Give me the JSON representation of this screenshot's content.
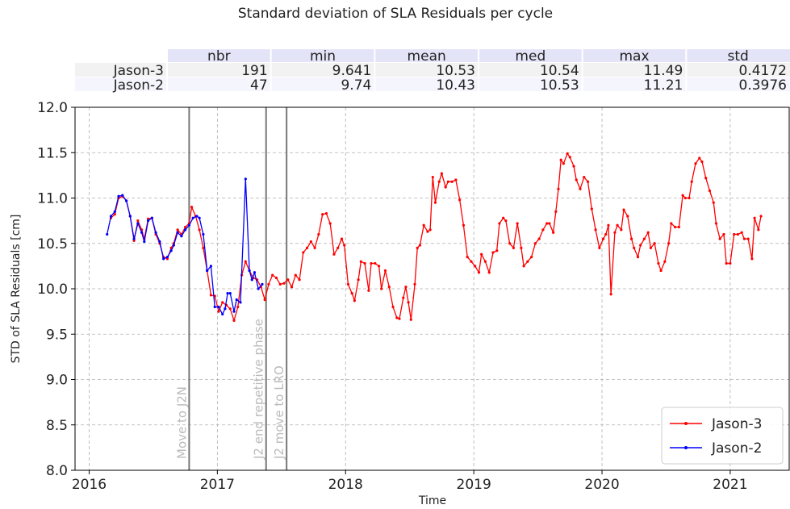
{
  "chart_data": {
    "type": "line",
    "title": "Standard deviation of SLA Residuals per cycle",
    "xlabel": "Time",
    "ylabel": "STD of SLA Residuals [cm]",
    "xlim": [
      2015.89,
      2021.46
    ],
    "xticks": [
      2016,
      2017,
      2018,
      2019,
      2020,
      2021
    ],
    "ylim": [
      8,
      12
    ],
    "yticks": [
      {
        "value": 8,
        "label": "8.0"
      },
      {
        "value": 8.5,
        "label": "8.5"
      },
      {
        "value": 9,
        "label": "9.0"
      },
      {
        "value": 9.5,
        "label": "9.5"
      },
      {
        "value": 10,
        "label": "10.0"
      },
      {
        "value": 10.5,
        "label": "10.5"
      },
      {
        "value": 11,
        "label": "11.0"
      },
      {
        "value": 11.5,
        "label": "11.5"
      },
      {
        "value": 12,
        "label": "12.0"
      }
    ],
    "grid": true,
    "legend": "lower right",
    "annotations": [
      {
        "x": 2016.78,
        "label": "Move to J2N"
      },
      {
        "x": 2017.38,
        "label": "J2 end repetitive phase"
      },
      {
        "x": 2017.54,
        "label": "J2 move to LRO"
      }
    ],
    "table": {
      "columns": [
        "nbr",
        "min",
        "mean",
        "med",
        "max",
        "std"
      ],
      "rows": [
        {
          "name": "Jason-3",
          "values": [
            191,
            9.641,
            10.53,
            10.54,
            11.49,
            0.4172
          ]
        },
        {
          "name": "Jason-2",
          "values": [
            47,
            9.74,
            10.43,
            10.53,
            11.21,
            0.3976
          ]
        }
      ]
    },
    "series": [
      {
        "name": "Jason-3",
        "color": "#ff0000",
        "x": [
          2016.17,
          2016.2,
          2016.23,
          2016.26,
          2016.29,
          2016.32,
          2016.35,
          2016.38,
          2016.41,
          2016.43,
          2016.46,
          2016.49,
          2016.52,
          2016.55,
          2016.58,
          2016.61,
          2016.64,
          2016.66,
          2016.69,
          2016.72,
          2016.75,
          2016.78,
          2016.8,
          2016.83,
          2016.86,
          2016.89,
          2016.92,
          2016.95,
          2016.98,
          2017.01,
          2017.04,
          2017.07,
          2017.1,
          2017.13,
          2017.16,
          2017.19,
          2017.22,
          2017.25,
          2017.28,
          2017.31,
          2017.34,
          2017.37,
          2017.4,
          2017.43,
          2017.46,
          2017.49,
          2017.52,
          2017.55,
          2017.58,
          2017.61,
          2017.64,
          2017.67,
          2017.7,
          2017.73,
          2017.76,
          2017.79,
          2017.82,
          2017.85,
          2017.88,
          2017.91,
          2017.94,
          2017.97,
          2017.99,
          2018.02,
          2018.05,
          2018.07,
          2018.1,
          2018.12,
          2018.15,
          2018.18,
          2018.2,
          2018.23,
          2018.26,
          2018.28,
          2018.31,
          2018.34,
          2018.37,
          2018.4,
          2018.42,
          2018.45,
          2018.47,
          2018.49,
          2018.51,
          2018.54,
          2018.56,
          2018.58,
          2018.61,
          2018.64,
          2018.66,
          2018.68,
          2018.7,
          2018.73,
          2018.75,
          2018.78,
          2018.8,
          2018.83,
          2018.86,
          2018.89,
          2018.92,
          2018.95,
          2018.98,
          2019.01,
          2019.04,
          2019.06,
          2019.09,
          2019.12,
          2019.15,
          2019.18,
          2019.2,
          2019.23,
          2019.25,
          2019.28,
          2019.31,
          2019.34,
          2019.37,
          2019.39,
          2019.42,
          2019.45,
          2019.48,
          2019.51,
          2019.54,
          2019.57,
          2019.59,
          2019.62,
          2019.64,
          2019.66,
          2019.68,
          2019.7,
          2019.73,
          2019.75,
          2019.78,
          2019.8,
          2019.83,
          2019.86,
          2019.89,
          2019.92,
          2019.95,
          2019.98,
          2020.01,
          2020.03,
          2020.05,
          2020.07,
          2020.1,
          2020.12,
          2020.15,
          2020.17,
          2020.2,
          2020.23,
          2020.25,
          2020.28,
          2020.3,
          2020.33,
          2020.36,
          2020.38,
          2020.41,
          2020.44,
          2020.46,
          2020.49,
          2020.52,
          2020.54,
          2020.57,
          2020.6,
          2020.63,
          2020.65,
          2020.68,
          2020.7,
          2020.73,
          2020.76,
          2020.78,
          2020.81,
          2020.84,
          2020.87,
          2020.89,
          2020.92,
          2020.95,
          2020.97,
          2021,
          2021.03,
          2021.06,
          2021.09,
          2021.11,
          2021.14,
          2021.17,
          2021.19,
          2021.22,
          2021.24
        ],
        "values": [
          10.78,
          10.82,
          11.0,
          11.02,
          10.97,
          10.8,
          10.53,
          10.75,
          10.65,
          10.55,
          10.77,
          10.78,
          10.6,
          10.5,
          10.35,
          10.33,
          10.45,
          10.5,
          10.65,
          10.6,
          10.68,
          10.72,
          10.9,
          10.8,
          10.65,
          10.45,
          10.2,
          9.93,
          9.92,
          9.75,
          9.85,
          9.82,
          9.78,
          9.65,
          9.8,
          10.15,
          10.3,
          10.2,
          10.12,
          10.1,
          10.02,
          9.88,
          10.05,
          10.15,
          10.12,
          10.05,
          10.06,
          10.1,
          10.02,
          10.15,
          10.1,
          10.4,
          10.45,
          10.52,
          10.45,
          10.6,
          10.82,
          10.83,
          10.72,
          10.38,
          10.45,
          10.55,
          10.48,
          10.05,
          9.95,
          9.87,
          10.1,
          10.3,
          10.28,
          9.98,
          10.28,
          10.28,
          10.25,
          10.0,
          10.2,
          10.02,
          9.8,
          9.68,
          9.67,
          9.9,
          10.02,
          9.85,
          9.66,
          10.05,
          10.45,
          10.48,
          10.7,
          10.63,
          10.65,
          11.23,
          10.95,
          11.18,
          11.27,
          11.12,
          11.18,
          11.18,
          11.2,
          10.98,
          10.7,
          10.35,
          10.3,
          10.25,
          10.18,
          10.38,
          10.3,
          10.18,
          10.4,
          10.42,
          10.72,
          10.78,
          10.75,
          10.5,
          10.45,
          10.72,
          10.45,
          10.25,
          10.3,
          10.35,
          10.5,
          10.55,
          10.65,
          10.72,
          10.72,
          10.62,
          10.85,
          11.1,
          11.42,
          11.38,
          11.49,
          11.45,
          11.35,
          11.2,
          11.1,
          11.23,
          11.18,
          10.88,
          10.65,
          10.45,
          10.55,
          10.6,
          10.7,
          9.94,
          10.62,
          10.7,
          10.65,
          10.87,
          10.8,
          10.55,
          10.45,
          10.35,
          10.48,
          10.55,
          10.62,
          10.45,
          10.5,
          10.28,
          10.2,
          10.3,
          10.5,
          10.72,
          10.68,
          10.68,
          11.03,
          11.0,
          11.0,
          11.18,
          11.38,
          11.44,
          11.4,
          11.22,
          11.08,
          10.95,
          10.72,
          10.55,
          10.6,
          10.28,
          10.28,
          10.6,
          10.6,
          10.62,
          10.55,
          10.55,
          10.33,
          10.78,
          10.65,
          10.8
        ]
      },
      {
        "name": "Jason-2",
        "color": "#0000ff",
        "x": [
          2016.14,
          2016.17,
          2016.2,
          2016.23,
          2016.26,
          2016.29,
          2016.32,
          2016.35,
          2016.38,
          2016.41,
          2016.43,
          2016.46,
          2016.49,
          2016.52,
          2016.55,
          2016.58,
          2016.61,
          2016.64,
          2016.66,
          2016.69,
          2016.72,
          2016.75,
          2016.78,
          2016.81,
          2016.84,
          2016.86,
          2016.89,
          2016.92,
          2016.95,
          2016.98,
          2017.01,
          2017.04,
          2017.06,
          2017.08,
          2017.1,
          2017.13,
          2017.15,
          2017.18,
          2017.22,
          2017.25,
          2017.27,
          2017.29,
          2017.32,
          2017.35
        ],
        "values": [
          10.6,
          10.8,
          10.85,
          11.02,
          11.03,
          10.97,
          10.8,
          10.55,
          10.72,
          10.62,
          10.52,
          10.75,
          10.78,
          10.62,
          10.52,
          10.33,
          10.35,
          10.42,
          10.48,
          10.62,
          10.58,
          10.65,
          10.7,
          10.78,
          10.8,
          10.78,
          10.6,
          10.2,
          10.25,
          9.8,
          9.8,
          9.72,
          9.78,
          9.95,
          9.95,
          9.75,
          9.88,
          9.85,
          11.21,
          10.2,
          10.1,
          10.18,
          10.0,
          10.05
        ]
      }
    ]
  }
}
